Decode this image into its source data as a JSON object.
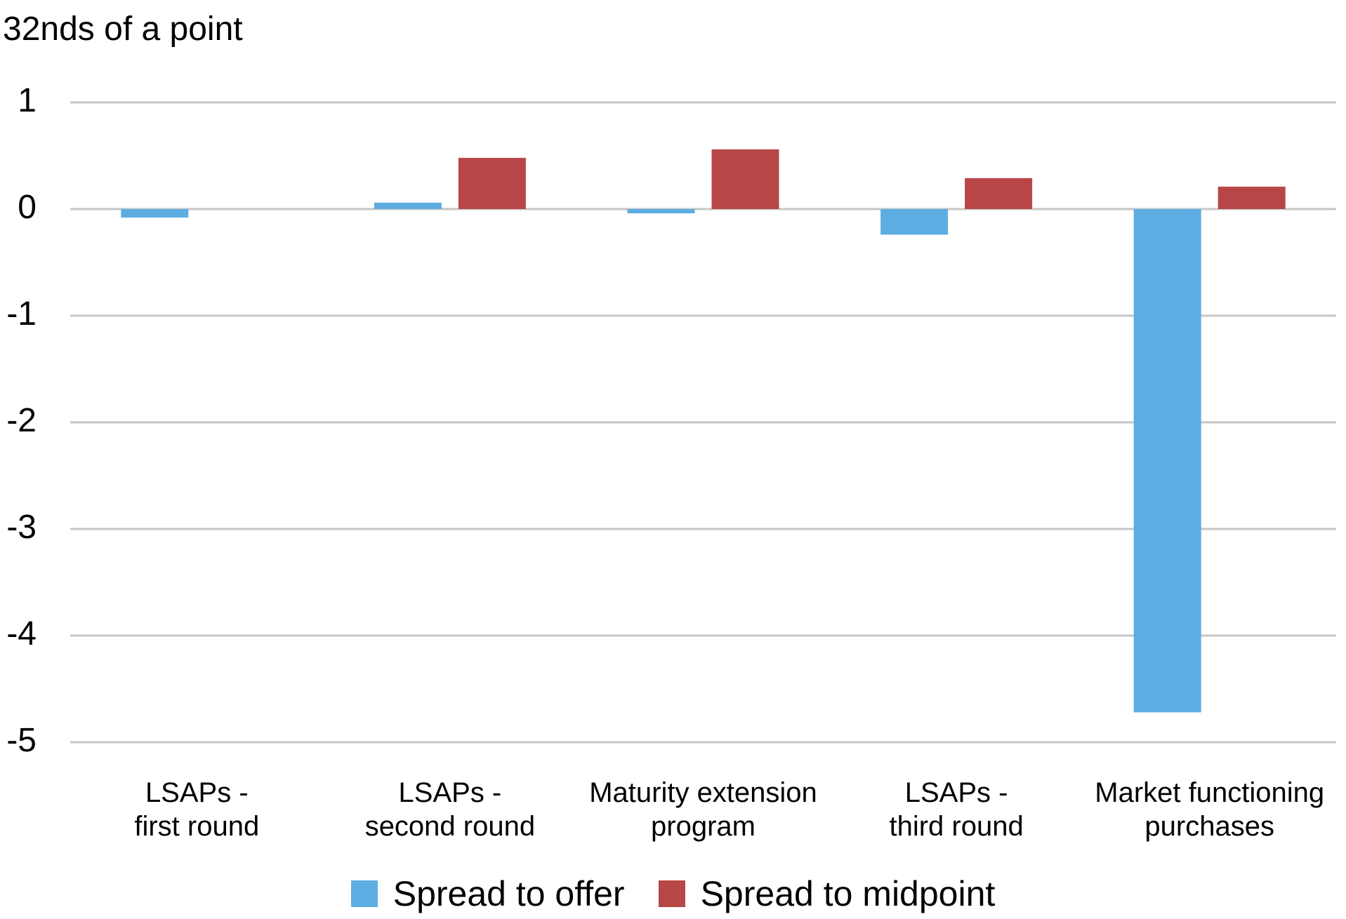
{
  "chart_data": {
    "type": "bar",
    "title": "",
    "xlabel": "",
    "ylabel": "32nds of a point",
    "ylim": [
      -5,
      1
    ],
    "yticks": [
      1,
      0,
      -1,
      -2,
      -3,
      -4,
      -5
    ],
    "ytick_labels": [
      "1",
      "0",
      "-1",
      "-2",
      "-3",
      "-4",
      "-5"
    ],
    "grid": true,
    "legend_position": "bottom-center",
    "categories": [
      [
        "LSAPs -",
        "first round"
      ],
      [
        "LSAPs -",
        "second round"
      ],
      [
        "Maturity extension",
        "program"
      ],
      [
        "LSAPs -",
        "third round"
      ],
      [
        "Market functioning",
        "purchases"
      ]
    ],
    "series": [
      {
        "name": "Spread to offer",
        "color": "#5dade2",
        "values": [
          -0.08,
          0.06,
          -0.04,
          -0.24,
          -4.72
        ]
      },
      {
        "name": "Spread to midpoint",
        "color": "#b84646",
        "values": [
          0.0,
          0.48,
          0.56,
          0.29,
          0.21
        ]
      }
    ]
  }
}
